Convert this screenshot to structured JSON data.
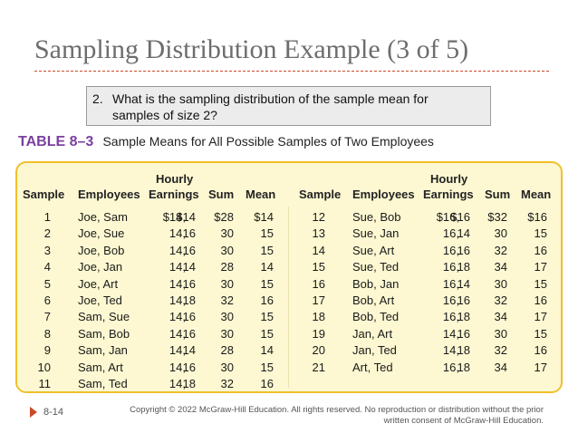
{
  "slide": {
    "title": "Sampling Distribution Example (3 of 5)",
    "question_number": "2.",
    "question_text": "What is the sampling distribution of the sample mean for samples of size 2?",
    "table_label": "TABLE 8–3",
    "table_caption": "Sample Means for All Possible Samples of Two Employees",
    "page_number": "8-14",
    "copyright": "Copyright © 2022 McGraw-Hill Education. All rights reserved. No reproduction or distribution without the prior written consent of McGraw-Hill Education."
  },
  "table": {
    "headers": {
      "sample": "Sample",
      "employees": "Employees",
      "hourly_line1": "Hourly",
      "hourly_line2": "Earnings",
      "sum": "Sum",
      "mean": "Mean"
    },
    "left_rows": [
      {
        "sample": "1",
        "employees": "Joe, Sam",
        "e1": "$14,",
        "e2": "$14",
        "sum": "$28",
        "mean": "$14"
      },
      {
        "sample": "2",
        "employees": "Joe, Sue",
        "e1": "14,",
        "e2": "16",
        "sum": "30",
        "mean": "15"
      },
      {
        "sample": "3",
        "employees": "Joe, Bob",
        "e1": "14,",
        "e2": "16",
        "sum": "30",
        "mean": "15"
      },
      {
        "sample": "4",
        "employees": "Joe, Jan",
        "e1": "14,",
        "e2": "14",
        "sum": "28",
        "mean": "14"
      },
      {
        "sample": "5",
        "employees": "Joe, Art",
        "e1": "14,",
        "e2": "16",
        "sum": "30",
        "mean": "15"
      },
      {
        "sample": "6",
        "employees": "Joe, Ted",
        "e1": "14,",
        "e2": "18",
        "sum": "32",
        "mean": "16"
      },
      {
        "sample": "7",
        "employees": "Sam, Sue",
        "e1": "14,",
        "e2": "16",
        "sum": "30",
        "mean": "15"
      },
      {
        "sample": "8",
        "employees": "Sam, Bob",
        "e1": "14,",
        "e2": "16",
        "sum": "30",
        "mean": "15"
      },
      {
        "sample": "9",
        "employees": "Sam, Jan",
        "e1": "14,",
        "e2": "14",
        "sum": "28",
        "mean": "14"
      },
      {
        "sample": "10",
        "employees": "Sam, Art",
        "e1": "14,",
        "e2": "16",
        "sum": "30",
        "mean": "15"
      },
      {
        "sample": "11",
        "employees": "Sam, Ted",
        "e1": "14,",
        "e2": "18",
        "sum": "32",
        "mean": "16"
      }
    ],
    "right_rows": [
      {
        "sample": "12",
        "employees": "Sue, Bob",
        "e1": "$16,",
        "e2": "$16",
        "sum": "$32",
        "mean": "$16"
      },
      {
        "sample": "13",
        "employees": "Sue, Jan",
        "e1": "16,",
        "e2": "14",
        "sum": "30",
        "mean": "15"
      },
      {
        "sample": "14",
        "employees": "Sue, Art",
        "e1": "16,",
        "e2": "16",
        "sum": "32",
        "mean": "16"
      },
      {
        "sample": "15",
        "employees": "Sue, Ted",
        "e1": "16,",
        "e2": "18",
        "sum": "34",
        "mean": "17"
      },
      {
        "sample": "16",
        "employees": "Bob, Jan",
        "e1": "16,",
        "e2": "14",
        "sum": "30",
        "mean": "15"
      },
      {
        "sample": "17",
        "employees": "Bob, Art",
        "e1": "16,",
        "e2": "16",
        "sum": "32",
        "mean": "16"
      },
      {
        "sample": "18",
        "employees": "Bob, Ted",
        "e1": "16,",
        "e2": "18",
        "sum": "34",
        "mean": "17"
      },
      {
        "sample": "19",
        "employees": "Jan, Art",
        "e1": "14,",
        "e2": "16",
        "sum": "30",
        "mean": "15"
      },
      {
        "sample": "20",
        "employees": "Jan, Ted",
        "e1": "14,",
        "e2": "18",
        "sum": "32",
        "mean": "16"
      },
      {
        "sample": "21",
        "employees": "Art, Ted",
        "e1": "16,",
        "e2": "18",
        "sum": "34",
        "mean": "17"
      }
    ]
  },
  "colors": {
    "title": "#6d6d6d",
    "accent_rule": "#c94a2a",
    "table_label": "#7b3f9e",
    "table_fill": "#fdf8d2",
    "table_border": "#f0c02a"
  }
}
